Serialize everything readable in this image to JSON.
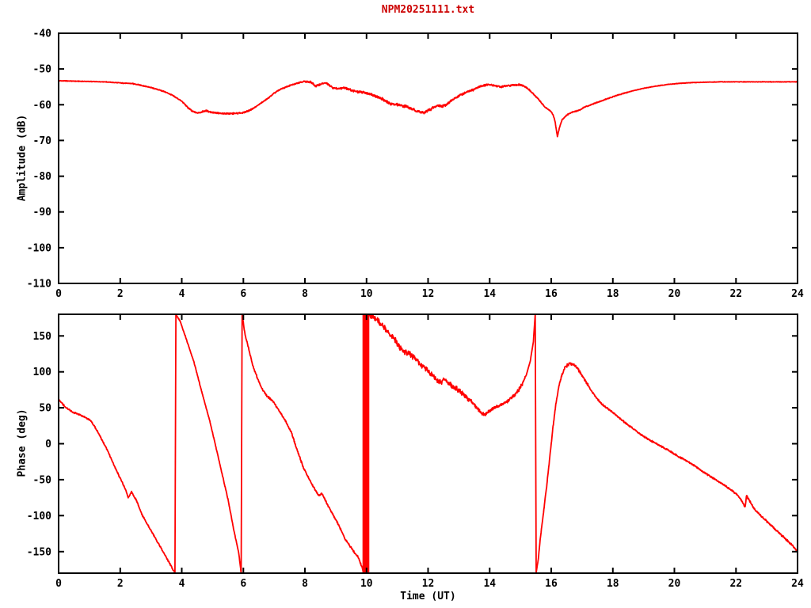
{
  "figure": {
    "background": "#ffffff",
    "axis_color": "#000000",
    "title_color": "#cc0000",
    "line_color": "#ff0000"
  },
  "chart_data": [
    {
      "type": "line",
      "panel": "amplitude",
      "title": "NPM20251111.txt",
      "xlabel": "",
      "ylabel": "Amplitude (dB)",
      "xlim": [
        0,
        24
      ],
      "ylim": [
        -110,
        -40
      ],
      "xticks": [
        0,
        2,
        4,
        6,
        8,
        10,
        12,
        14,
        16,
        18,
        20,
        22,
        24
      ],
      "yticks": [
        -110,
        -100,
        -90,
        -80,
        -70,
        -60,
        -50,
        -40
      ],
      "grid": false,
      "legend": "none",
      "series": [
        {
          "name": "amplitude",
          "color": "#ff0000",
          "clamp": false,
          "keypoints": [
            [
              0,
              -53.3
            ],
            [
              0.5,
              -53.4
            ],
            [
              1,
              -53.5
            ],
            [
              1.5,
              -53.6
            ],
            [
              2,
              -53.9
            ],
            [
              2.4,
              -54.1
            ],
            [
              2.6,
              -54.4
            ],
            [
              3,
              -55.2
            ],
            [
              3.4,
              -56.2
            ],
            [
              3.7,
              -57.4
            ],
            [
              4,
              -59
            ],
            [
              4.2,
              -60.8
            ],
            [
              4.35,
              -61.9
            ],
            [
              4.5,
              -62.3
            ],
            [
              4.65,
              -62
            ],
            [
              4.8,
              -61.7
            ],
            [
              4.95,
              -62.1
            ],
            [
              5.2,
              -62.4
            ],
            [
              5.5,
              -62.5
            ],
            [
              5.8,
              -62.4
            ],
            [
              6,
              -62.2
            ],
            [
              6.2,
              -61.6
            ],
            [
              6.4,
              -60.6
            ],
            [
              6.6,
              -59.4
            ],
            [
              6.8,
              -58.2
            ],
            [
              7,
              -56.8
            ],
            [
              7.2,
              -55.7
            ],
            [
              7.4,
              -55
            ],
            [
              7.6,
              -54.4
            ],
            [
              7.8,
              -53.8
            ],
            [
              8,
              -53.5
            ],
            [
              8.2,
              -53.7
            ],
            [
              8.35,
              -54.8
            ],
            [
              8.55,
              -54.1
            ],
            [
              8.7,
              -54
            ],
            [
              8.9,
              -55.3
            ],
            [
              9.1,
              -55.5
            ],
            [
              9.3,
              -55.2
            ],
            [
              9.5,
              -55.9
            ],
            [
              9.7,
              -56.4
            ],
            [
              9.9,
              -56.6
            ],
            [
              10.1,
              -56.9
            ],
            [
              10.3,
              -57.6
            ],
            [
              10.5,
              -58.3
            ],
            [
              10.7,
              -59.5
            ],
            [
              10.9,
              -59.9
            ],
            [
              11.1,
              -60.1
            ],
            [
              11.3,
              -60.5
            ],
            [
              11.5,
              -61.3
            ],
            [
              11.7,
              -61.9
            ],
            [
              11.85,
              -62.3
            ],
            [
              12,
              -61.6
            ],
            [
              12.15,
              -61
            ],
            [
              12.3,
              -60.2
            ],
            [
              12.45,
              -60.4
            ],
            [
              12.6,
              -59.9
            ],
            [
              12.75,
              -58.9
            ],
            [
              13,
              -57.5
            ],
            [
              13.2,
              -56.7
            ],
            [
              13.45,
              -55.9
            ],
            [
              13.7,
              -54.8
            ],
            [
              13.95,
              -54.4
            ],
            [
              14.15,
              -54.6
            ],
            [
              14.35,
              -55
            ],
            [
              14.6,
              -54.7
            ],
            [
              14.8,
              -54.5
            ],
            [
              15,
              -54.4
            ],
            [
              15.2,
              -55.2
            ],
            [
              15.4,
              -56.8
            ],
            [
              15.6,
              -58.6
            ],
            [
              15.8,
              -60.7
            ],
            [
              15.95,
              -61.6
            ],
            [
              16.05,
              -62.6
            ],
            [
              16.12,
              -64.5
            ],
            [
              16.2,
              -68.8
            ],
            [
              16.28,
              -66
            ],
            [
              16.35,
              -64.3
            ],
            [
              16.5,
              -62.9
            ],
            [
              16.65,
              -62.2
            ],
            [
              16.8,
              -61.8
            ],
            [
              16.95,
              -61.4
            ],
            [
              17.05,
              -60.8
            ],
            [
              17.2,
              -60.3
            ],
            [
              17.5,
              -59.3
            ],
            [
              17.8,
              -58.4
            ],
            [
              18.1,
              -57.5
            ],
            [
              18.4,
              -56.7
            ],
            [
              18.7,
              -56
            ],
            [
              19,
              -55.4
            ],
            [
              19.4,
              -54.8
            ],
            [
              19.8,
              -54.3
            ],
            [
              20.2,
              -54
            ],
            [
              20.6,
              -53.8
            ],
            [
              21,
              -53.7
            ],
            [
              21.5,
              -53.6
            ],
            [
              22,
              -53.6
            ],
            [
              23,
              -53.6
            ],
            [
              24,
              -53.6
            ]
          ],
          "noise_zones": [
            [
              0,
              2.4,
              0.07
            ],
            [
              2.4,
              4.2,
              0.1
            ],
            [
              4.2,
              6.3,
              0.16
            ],
            [
              6.3,
              7.8,
              0.12
            ],
            [
              7.8,
              9.3,
              0.2
            ],
            [
              9.3,
              10.6,
              0.25
            ],
            [
              10.6,
              12.7,
              0.3
            ],
            [
              12.7,
              13.7,
              0.22
            ],
            [
              13.7,
              15.3,
              0.18
            ],
            [
              15.3,
              16.6,
              0.12
            ],
            [
              16.6,
              18.5,
              0.1
            ],
            [
              18.5,
              24,
              0.05
            ]
          ]
        }
      ]
    },
    {
      "type": "line",
      "panel": "phase",
      "title": "",
      "xlabel": "Time (UT)",
      "ylabel": "Phase (deg)",
      "xlim": [
        0,
        24
      ],
      "ylim": [
        -180,
        180
      ],
      "xticks": [
        0,
        2,
        4,
        6,
        8,
        10,
        12,
        14,
        16,
        18,
        20,
        22,
        24
      ],
      "yticks": [
        -150,
        -100,
        -50,
        0,
        50,
        100,
        150
      ],
      "grid": false,
      "legend": "none",
      "phase_wraps_at": [
        3.8,
        5.95,
        10.0,
        15.5
      ],
      "series": [
        {
          "name": "phase",
          "color": "#ff0000",
          "clamp": true,
          "wrap_band": {
            "t_start": 9.87,
            "t_end": 10.09
          },
          "keypoints": [
            [
              0,
              61
            ],
            [
              0.25,
              50
            ],
            [
              0.45,
              44
            ],
            [
              0.65,
              41
            ],
            [
              0.85,
              37
            ],
            [
              1.05,
              32
            ],
            [
              1.25,
              18
            ],
            [
              1.54,
              -5
            ],
            [
              1.8,
              -30
            ],
            [
              2,
              -48
            ],
            [
              2.18,
              -64
            ],
            [
              2.26,
              -75
            ],
            [
              2.37,
              -67
            ],
            [
              2.55,
              -81
            ],
            [
              2.7,
              -98
            ],
            [
              2.9,
              -113
            ],
            [
              3.2,
              -136
            ],
            [
              3.5,
              -158
            ],
            [
              3.78,
              -180
            ],
            [
              3.81,
              180
            ],
            [
              3.95,
              170
            ],
            [
              4.15,
              145
            ],
            [
              4.4,
              113
            ],
            [
              4.65,
              72
            ],
            [
              4.9,
              33
            ],
            [
              5.1,
              -3
            ],
            [
              5.3,
              -40
            ],
            [
              5.5,
              -77
            ],
            [
              5.7,
              -122
            ],
            [
              5.85,
              -152
            ],
            [
              5.93,
              -180
            ],
            [
              5.96,
              180
            ],
            [
              6.05,
              153
            ],
            [
              6.15,
              136
            ],
            [
              6.3,
              110
            ],
            [
              6.45,
              92
            ],
            [
              6.6,
              77
            ],
            [
              6.75,
              67
            ],
            [
              6.95,
              60
            ],
            [
              7.15,
              47
            ],
            [
              7.35,
              33
            ],
            [
              7.55,
              17
            ],
            [
              7.75,
              -9
            ],
            [
              7.95,
              -33
            ],
            [
              8.11,
              -47
            ],
            [
              8.3,
              -62
            ],
            [
              8.45,
              -72
            ],
            [
              8.55,
              -69
            ],
            [
              8.7,
              -82
            ],
            [
              8.9,
              -98
            ],
            [
              9.1,
              -113
            ],
            [
              9.3,
              -132
            ],
            [
              9.45,
              -141
            ],
            [
              9.6,
              -151
            ],
            [
              9.72,
              -157
            ],
            [
              9.86,
              -172
            ],
            [
              9.9,
              -180
            ],
            [
              9.98,
              -180
            ],
            [
              10,
              180
            ],
            [
              10.12,
              178
            ],
            [
              10.22,
              175
            ],
            [
              10.38,
              171
            ],
            [
              10.52,
              165
            ],
            [
              10.68,
              157
            ],
            [
              10.82,
              150
            ],
            [
              10.95,
              143
            ],
            [
              11.08,
              133
            ],
            [
              11.2,
              128
            ],
            [
              11.38,
              126
            ],
            [
              11.55,
              119
            ],
            [
              11.72,
              112
            ],
            [
              11.9,
              105
            ],
            [
              12.1,
              97
            ],
            [
              12.3,
              88
            ],
            [
              12.42,
              85
            ],
            [
              12.52,
              91
            ],
            [
              12.62,
              86
            ],
            [
              12.8,
              80
            ],
            [
              13,
              74
            ],
            [
              13.2,
              67
            ],
            [
              13.4,
              59
            ],
            [
              13.58,
              50
            ],
            [
              13.75,
              42
            ],
            [
              13.85,
              40
            ],
            [
              13.95,
              45
            ],
            [
              14.1,
              49
            ],
            [
              14.3,
              52
            ],
            [
              14.5,
              57
            ],
            [
              14.7,
              63
            ],
            [
              14.9,
              72
            ],
            [
              15.05,
              82
            ],
            [
              15.2,
              97
            ],
            [
              15.32,
              115
            ],
            [
              15.42,
              142
            ],
            [
              15.48,
              180
            ],
            [
              15.51,
              -180
            ],
            [
              15.58,
              -160
            ],
            [
              15.65,
              -130
            ],
            [
              15.75,
              -95
            ],
            [
              15.85,
              -60
            ],
            [
              15.95,
              -20
            ],
            [
              16.05,
              20
            ],
            [
              16.15,
              55
            ],
            [
              16.25,
              80
            ],
            [
              16.35,
              96
            ],
            [
              16.45,
              106
            ],
            [
              16.6,
              112
            ],
            [
              16.75,
              110
            ],
            [
              16.85,
              105
            ],
            [
              16.95,
              98
            ],
            [
              17.1,
              88
            ],
            [
              17.3,
              74
            ],
            [
              17.5,
              62
            ],
            [
              17.7,
              53
            ],
            [
              17.9,
              47
            ],
            [
              18.1,
              40
            ],
            [
              18.35,
              31
            ],
            [
              18.6,
              23
            ],
            [
              18.9,
              13
            ],
            [
              19.2,
              5
            ],
            [
              19.5,
              -2
            ],
            [
              19.8,
              -9
            ],
            [
              20.1,
              -17
            ],
            [
              20.4,
              -24
            ],
            [
              20.7,
              -32
            ],
            [
              21,
              -41
            ],
            [
              21.3,
              -49
            ],
            [
              21.6,
              -57
            ],
            [
              21.9,
              -66
            ],
            [
              22.1,
              -74
            ],
            [
              22.25,
              -84
            ],
            [
              22.3,
              -88
            ],
            [
              22.34,
              -72
            ],
            [
              22.42,
              -78
            ],
            [
              22.6,
              -91
            ],
            [
              22.8,
              -100
            ],
            [
              23,
              -108
            ],
            [
              23.2,
              -116
            ],
            [
              23.5,
              -128
            ],
            [
              23.8,
              -140
            ],
            [
              24,
              -150
            ]
          ],
          "noise_zones": [
            [
              0,
              3.78,
              0.8
            ],
            [
              3.81,
              5.93,
              0.6
            ],
            [
              5.96,
              9.86,
              1.0
            ],
            [
              10.12,
              11.2,
              3.2
            ],
            [
              11.2,
              13.4,
              2.8
            ],
            [
              13.4,
              15.2,
              1.8
            ],
            [
              15.55,
              16.3,
              1.0
            ],
            [
              16.3,
              17.2,
              1.5
            ],
            [
              17.2,
              22.2,
              0.8
            ],
            [
              22.2,
              24,
              1.0
            ]
          ]
        }
      ]
    }
  ]
}
